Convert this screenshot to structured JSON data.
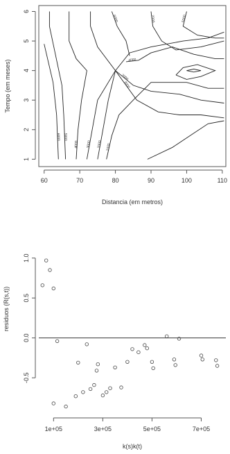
{
  "chart_data": [
    {
      "type": "contour",
      "xlabel": "Distancia (em metros)",
      "ylabel": "Tempo (em meses)",
      "xlim": [
        58.5,
        111
      ],
      "ylim": [
        0.75,
        6.2
      ],
      "xticks": [
        "60",
        "70",
        "80",
        "90",
        "100",
        "110"
      ],
      "yticks": [
        "1",
        "2",
        "3",
        "4",
        "5",
        "6"
      ],
      "grid": false,
      "contour_levels": [
        {
          "label": "6000",
          "points": [
            [
              64,
              1.0
            ],
            [
              63.5,
              2.5
            ],
            [
              62.5,
              3.6
            ],
            [
              60,
              4.9
            ]
          ]
        },
        {
          "label": "5000",
          "points": [
            [
              66,
              1.0
            ],
            [
              65.5,
              2.5
            ],
            [
              65,
              3.5
            ],
            [
              61.5,
              5.5
            ],
            [
              61.5,
              6.0
            ]
          ]
        },
        {
          "label": "4000",
          "points": [
            [
              69,
              1.0
            ],
            [
              69.5,
              2.0
            ],
            [
              70.5,
              3.0
            ],
            [
              72,
              4.0
            ],
            [
              69,
              4.4
            ],
            [
              67,
              5.0
            ],
            [
              67,
              6.0
            ]
          ]
        },
        {
          "label": "3000",
          "points": [
            [
              72,
              1.0
            ],
            [
              73.5,
              2.0
            ],
            [
              75,
              3.0
            ],
            [
              80,
              4.0
            ],
            [
              84,
              4.6
            ],
            [
              90,
              4.8
            ],
            [
              99,
              5.0
            ],
            [
              106,
              5.1
            ],
            [
              110.5,
              5.3
            ]
          ]
        },
        {
          "label": "2000",
          "points": [
            [
              75,
              1.0
            ],
            [
              76.5,
              2.0
            ],
            [
              78,
              3.0
            ],
            [
              80,
              4.0
            ],
            [
              75,
              4.8
            ],
            [
              73,
              5.5
            ],
            [
              73,
              6.0
            ]
          ]
        },
        {
          "label": "1000",
          "points": [
            [
              77.5,
              1.0
            ],
            [
              79,
              1.8
            ],
            [
              81,
              2.5
            ],
            [
              85,
              3.0
            ],
            [
              90,
              3.6
            ],
            [
              100,
              3.6
            ],
            [
              106,
              3.4
            ],
            [
              110.5,
              3.4
            ]
          ]
        },
        {
          "label": "2000",
          "points": [
            [
              80,
              4.0
            ],
            [
              85,
              3.5
            ],
            [
              90,
              3.3
            ],
            [
              98,
              3.2
            ],
            [
              104,
              3.0
            ],
            [
              110.5,
              2.9
            ]
          ]
        },
        {
          "label": "3000",
          "points": [
            [
              80,
              4.0
            ],
            [
              86,
              3.0
            ],
            [
              92,
              2.6
            ],
            [
              98,
              2.5
            ],
            [
              104,
              2.5
            ],
            [
              110.5,
              2.4
            ]
          ]
        },
        {
          "label": "",
          "points": [
            [
              89,
              1.0
            ],
            [
              96,
              1.4
            ],
            [
              101,
              1.8
            ],
            [
              106,
              2.2
            ],
            [
              110.5,
              2.3
            ]
          ]
        },
        {
          "label": "6000",
          "points": [
            [
              79,
              6.0
            ],
            [
              80.5,
              5.5
            ],
            [
              83,
              5.0
            ],
            [
              84,
              4.5
            ]
          ]
        },
        {
          "label": "4000",
          "points": [
            [
              83,
              4.3
            ],
            [
              86.5,
              4.35
            ],
            [
              90,
              4.6
            ],
            [
              96,
              4.8
            ],
            [
              102,
              4.55
            ],
            [
              108,
              4.4
            ],
            [
              110.5,
              4.4
            ]
          ]
        },
        {
          "label": "7000",
          "points": [
            [
              90,
              6.0
            ],
            [
              90.5,
              5.5
            ],
            [
              93,
              5.0
            ],
            [
              97,
              4.7
            ],
            [
              104,
              4.8
            ],
            [
              110.5,
              5.0
            ]
          ]
        },
        {
          "label": "5000",
          "points": [
            [
              100,
              6.0
            ],
            [
              99,
              5.5
            ],
            [
              103,
              5.2
            ],
            [
              108,
              5.1
            ],
            [
              110.5,
              5.1
            ]
          ]
        },
        {
          "label": "",
          "points": [
            [
              97,
              3.85
            ],
            [
              100,
              3.7
            ],
            [
              104,
              3.8
            ],
            [
              108,
              4.0
            ],
            [
              103,
              4.2
            ],
            [
              99,
              4.1
            ],
            [
              97,
              3.85
            ]
          ]
        },
        {
          "label": "",
          "points": [
            [
              100,
              4.0
            ],
            [
              102,
              3.95
            ],
            [
              104,
              4.0
            ],
            [
              102,
              4.05
            ],
            [
              100,
              4.0
            ]
          ]
        }
      ]
    },
    {
      "type": "scatter",
      "xlabel": "k(s)k(t)",
      "ylabel": "residuos (R(s,t))",
      "xlim": [
        40000,
        800000
      ],
      "ylim": [
        -0.95,
        1.05
      ],
      "xticks": [
        "1e+05",
        "3e+05",
        "5e+05",
        "7e+05"
      ],
      "yticks": [
        "-0.5",
        "0.0",
        "0.5",
        "1.0"
      ],
      "grid": false,
      "reference_line_y": 0.0,
      "points": [
        [
          55000,
          0.66
        ],
        [
          70000,
          0.97
        ],
        [
          85000,
          0.85
        ],
        [
          100000,
          0.62
        ],
        [
          115000,
          -0.04
        ],
        [
          100000,
          -0.82
        ],
        [
          150000,
          -0.86
        ],
        [
          190000,
          -0.73
        ],
        [
          200000,
          -0.31
        ],
        [
          220000,
          -0.68
        ],
        [
          235000,
          -0.08
        ],
        [
          250000,
          -0.64
        ],
        [
          265000,
          -0.59
        ],
        [
          275000,
          -0.41
        ],
        [
          280000,
          -0.33
        ],
        [
          300000,
          -0.72
        ],
        [
          315000,
          -0.68
        ],
        [
          330000,
          -0.63
        ],
        [
          350000,
          -0.37
        ],
        [
          375000,
          -0.62
        ],
        [
          400000,
          -0.3
        ],
        [
          420000,
          -0.14
        ],
        [
          445000,
          -0.18
        ],
        [
          470000,
          -0.09
        ],
        [
          480000,
          -0.13
        ],
        [
          500000,
          -0.3
        ],
        [
          505000,
          -0.38
        ],
        [
          560000,
          0.02
        ],
        [
          590000,
          -0.27
        ],
        [
          595000,
          -0.34
        ],
        [
          610000,
          -0.01
        ],
        [
          700000,
          -0.22
        ],
        [
          705000,
          -0.27
        ],
        [
          760000,
          -0.28
        ],
        [
          765000,
          -0.35
        ]
      ]
    }
  ]
}
